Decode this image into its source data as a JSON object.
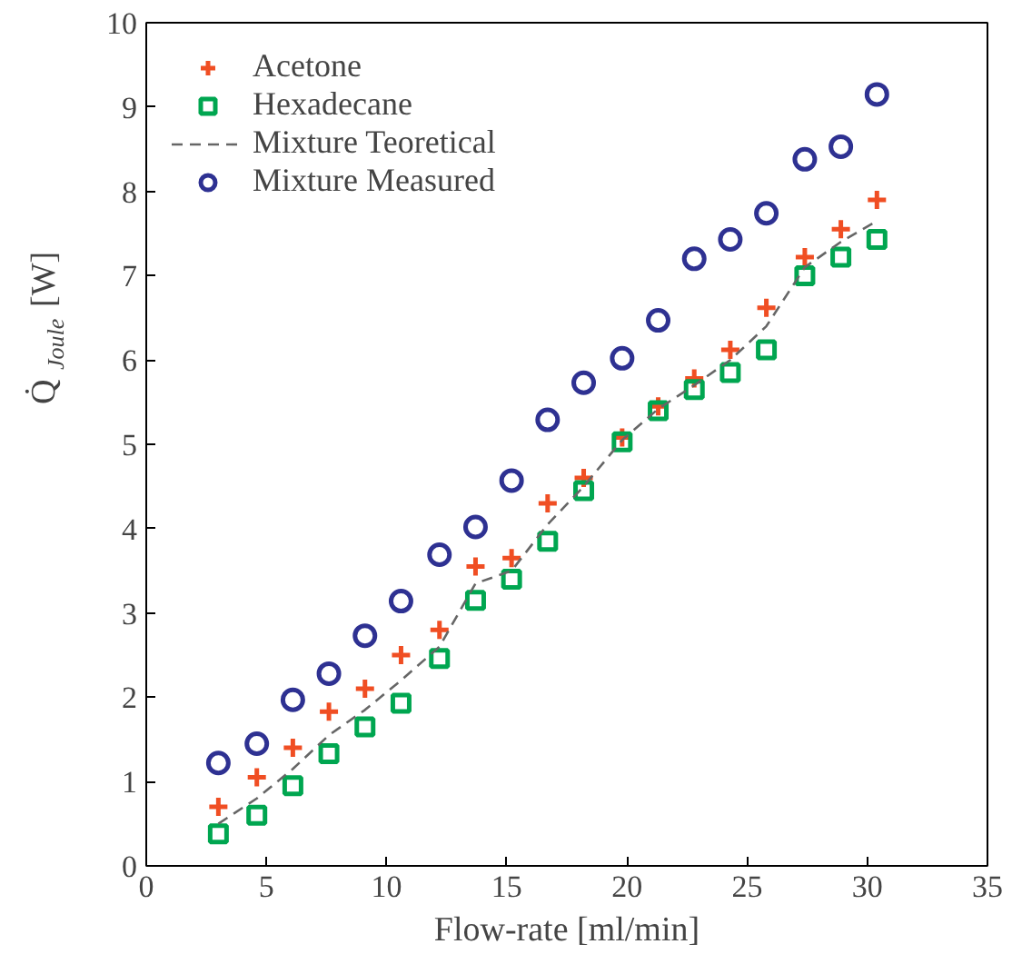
{
  "chart_data": {
    "type": "scatter",
    "xlabel": "Flow-rate [ml/min]",
    "ylabel": "Q̇$_{Joule}$ [W]",
    "x": [
      3,
      4.6,
      6.1,
      7.6,
      9.1,
      10.6,
      12.2,
      13.7,
      15.2,
      16.7,
      18.2,
      19.8,
      21.3,
      22.8,
      24.3,
      25.8,
      27.4,
      28.9,
      30.4
    ],
    "xlim": [
      0,
      35
    ],
    "xticks": [
      0,
      5,
      10,
      15,
      20,
      25,
      30,
      35
    ],
    "ylim": [
      0,
      10
    ],
    "yticks": [
      0,
      1,
      2,
      3,
      4,
      5,
      6,
      7,
      8,
      9,
      10
    ],
    "grid": false,
    "legend": "top left",
    "series": [
      {
        "name": "Acetone",
        "color": "#f04e23",
        "marker": "cross",
        "values": [
          0.7,
          1.05,
          1.4,
          1.83,
          2.1,
          2.5,
          2.8,
          3.55,
          3.65,
          4.3,
          4.6,
          5.08,
          5.45,
          5.78,
          6.12,
          6.62,
          7.22,
          7.55,
          7.9
        ]
      },
      {
        "name": "Hexadecane",
        "color": "#00a650",
        "marker": "square",
        "values": [
          0.38,
          0.6,
          0.95,
          1.33,
          1.65,
          1.93,
          2.46,
          3.15,
          3.4,
          3.85,
          4.45,
          5.03,
          5.4,
          5.65,
          5.85,
          6.12,
          7.0,
          7.22,
          7.43
        ]
      },
      {
        "name": "Mixture Teoretical",
        "color": "#666666",
        "type": "line",
        "line_style": "dashed",
        "marker": "none",
        "values": [
          0.5,
          0.8,
          1.15,
          1.55,
          1.85,
          2.2,
          2.6,
          3.35,
          3.5,
          4.05,
          4.5,
          5.05,
          5.42,
          5.7,
          6.0,
          6.4,
          7.1,
          7.4,
          7.65
        ]
      },
      {
        "name": "Mixture Measured",
        "color": "#2e3192",
        "marker": "circle",
        "values": [
          1.22,
          1.45,
          1.97,
          2.28,
          2.73,
          3.14,
          3.69,
          4.02,
          4.57,
          5.29,
          5.73,
          6.02,
          6.47,
          7.2,
          7.43,
          7.74,
          8.38,
          8.53,
          9.15
        ]
      }
    ]
  }
}
